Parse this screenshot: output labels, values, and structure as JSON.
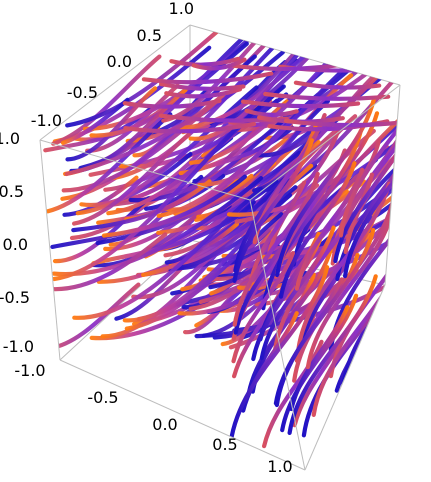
{
  "chart_data": {
    "type": "stream3d",
    "title": "",
    "xlabel": "",
    "ylabel": "",
    "zlabel": "",
    "x_range": [
      -1.0,
      1.0
    ],
    "y_range": [
      -1.0,
      1.0
    ],
    "z_range": [
      -1.0,
      1.0
    ],
    "x_ticks": [
      "-1.0",
      "-0.5",
      "0.0",
      "0.5",
      "1.0"
    ],
    "y_ticks": [
      "-1.0",
      "-0.5",
      "0.0",
      "0.5",
      "1.0"
    ],
    "z_ticks": [
      "-1.0",
      "-0.5",
      "0.0",
      "0.5",
      "1.0"
    ],
    "box": true,
    "grid": false,
    "color_low": "#e0603f",
    "color_mid": "#7a2fc0",
    "color_high": "#1a10c8",
    "color_end": "#ff7a10"
  }
}
